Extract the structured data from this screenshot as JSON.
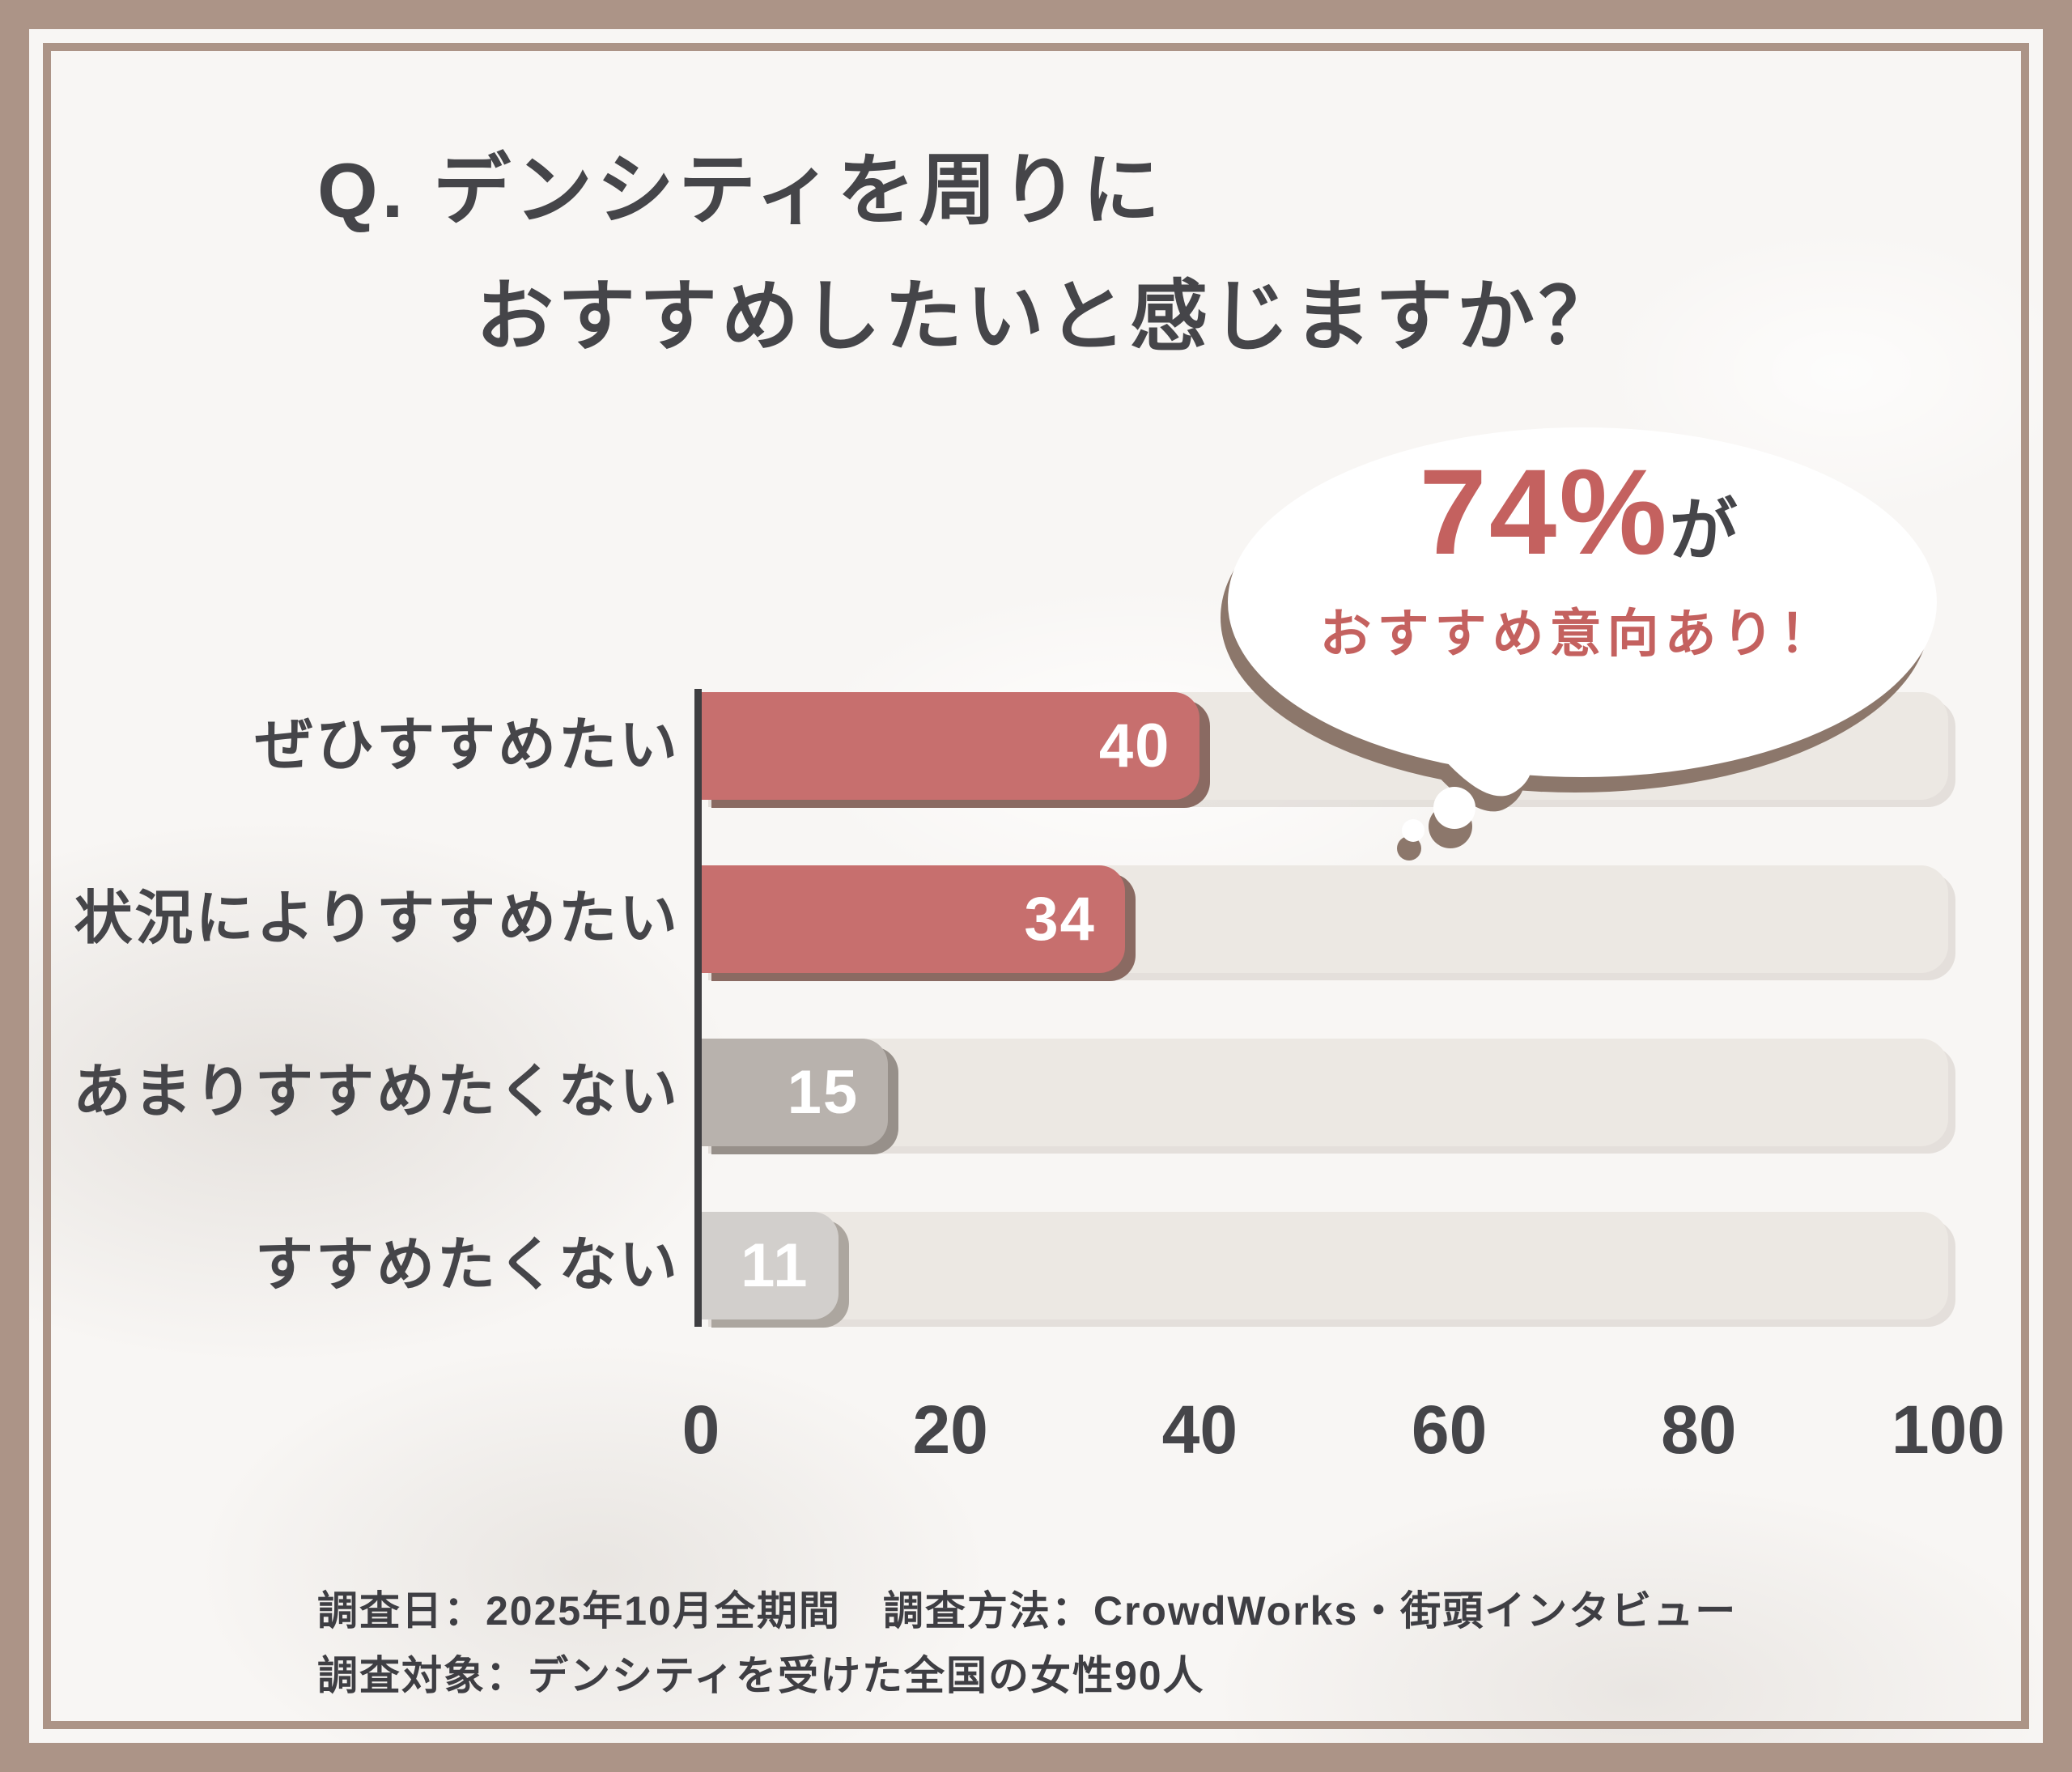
{
  "title": {
    "line1": "Q. デンシティを周りに",
    "line2": "おすすめしたいと感じますか？"
  },
  "callout": {
    "percent": "74%",
    "suffix": "が",
    "line2": "おすすめ意向あり！"
  },
  "chart_data": {
    "type": "bar",
    "orientation": "horizontal",
    "title": "デンシティを周りにおすすめしたいと感じますか？",
    "categories": [
      "ぜひすすめたい",
      "状況によりすすめたい",
      "あまりすすめたくない",
      "すすめたくない"
    ],
    "values": [
      40,
      34,
      15,
      11
    ],
    "value_label_position": "inside-end",
    "value_label_color": "#ffffff",
    "bar_colors": [
      "#c76f6e",
      "#c76f6e",
      "#b8b2ad",
      "#d2cfcc"
    ],
    "bar_shadow_colors": [
      "#8a6a62",
      "#8a6a62",
      "#97908a",
      "#aca69f"
    ],
    "track_color": "#ece8e3",
    "xlabel": "",
    "ylabel": "",
    "xlim": [
      0,
      100
    ],
    "x_ticks": [
      0,
      20,
      40,
      60,
      80,
      100
    ],
    "grid": false,
    "legend": null,
    "annotation": "74%がおすすめ意向あり！"
  },
  "footer": {
    "line1": "調査日：2025年10月全期間　調査方法：CrowdWorks・街頭インタビュー",
    "line2": "調査対象：デンシティを受けた全国の女性90人"
  },
  "colors": {
    "frame": "#ac9487",
    "panel-bg": "#f8f6f4",
    "track": "#ece8e3",
    "text-dark": "#454549",
    "accent-red": "#c4615f",
    "axis": "#3e3e41",
    "shadow-brown": "#8c776b",
    "footer-text": "#3e3e43"
  }
}
